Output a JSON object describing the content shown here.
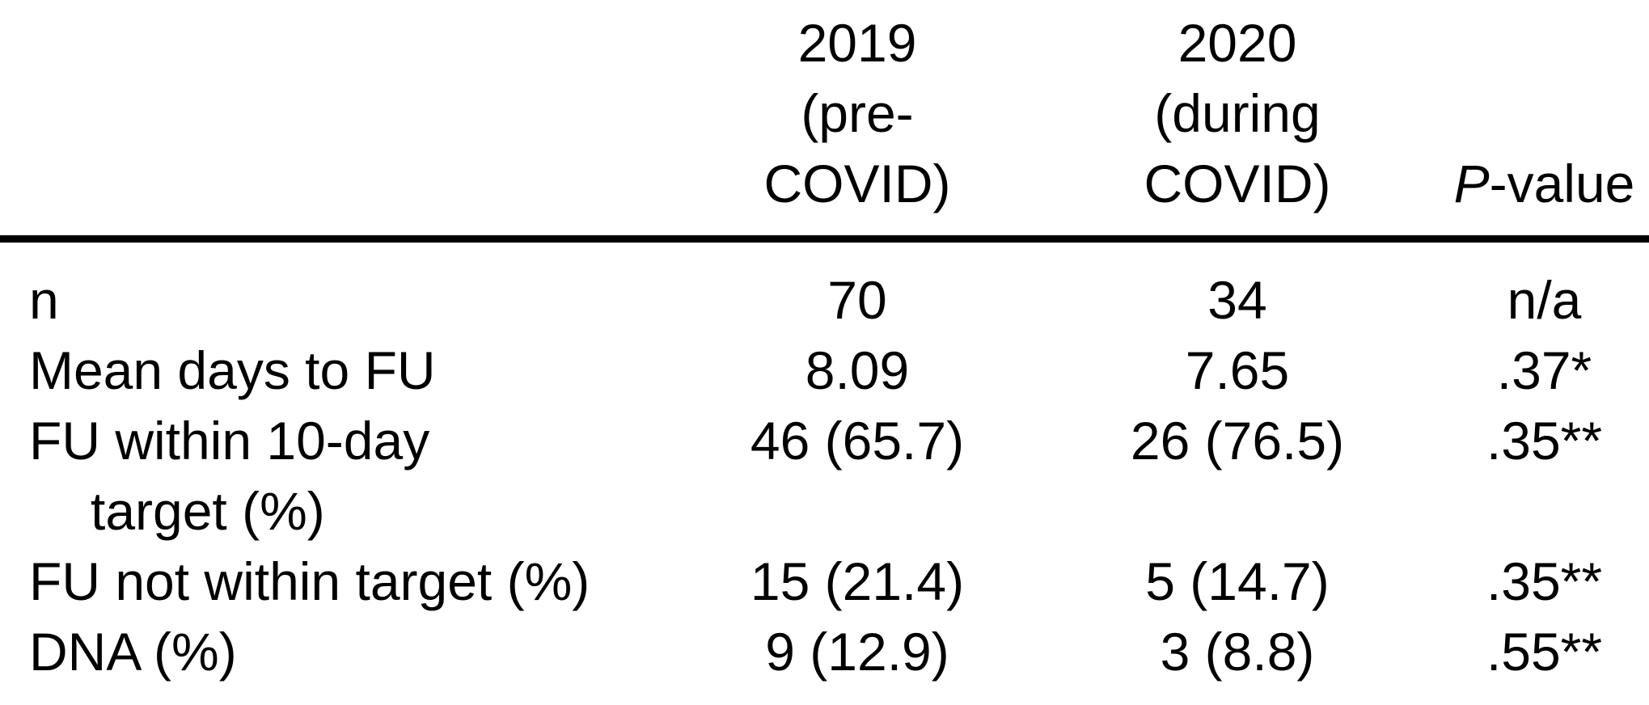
{
  "figure": {
    "header": {
      "label_col": "",
      "col_2019_lines": [
        "2019",
        "(pre-",
        "COVID)"
      ],
      "col_2020_lines": [
        "2020",
        "(during",
        "COVID)"
      ],
      "pvalue_italic": "P",
      "pvalue_rest": "-value"
    },
    "rows": [
      {
        "label": "n",
        "v2019": "70",
        "v2020": "34",
        "pvalue": "n/a"
      },
      {
        "label": "Mean days to FU",
        "v2019": "8.09",
        "v2020": "7.65",
        "pvalue": ".37*"
      },
      {
        "label": "FU within 10-day",
        "label_line2": "target (%)",
        "v2019": "46 (65.7)",
        "v2020": "26 (76.5)",
        "pvalue": ".35**"
      },
      {
        "label": "FU not within target (%)",
        "v2019": "15 (21.4)",
        "v2020": "5 (14.7)",
        "pvalue": ".35**"
      },
      {
        "label": "DNA (%)",
        "v2019": "9 (12.9)",
        "v2020": "3 (8.8)",
        "pvalue": ".55**"
      }
    ]
  },
  "chart_data": {
    "type": "table",
    "columns": [
      "",
      "2019 (pre-COVID)",
      "2020 (during COVID)",
      "P-value"
    ],
    "rows": [
      [
        "n",
        "70",
        "34",
        "n/a"
      ],
      [
        "Mean days to FU",
        "8.09",
        "7.65",
        ".37*"
      ],
      [
        "FU within 10-day target (%)",
        "46 (65.7)",
        "26 (76.5)",
        ".35**"
      ],
      [
        "FU not within target (%)",
        "15 (21.4)",
        "5 (14.7)",
        ".35**"
      ],
      [
        "DNA (%)",
        "9 (12.9)",
        "3 (8.8)",
        ".55**"
      ]
    ]
  },
  "colors": {
    "text": "#000000",
    "background": "#ffffff",
    "rule": "#000000"
  }
}
